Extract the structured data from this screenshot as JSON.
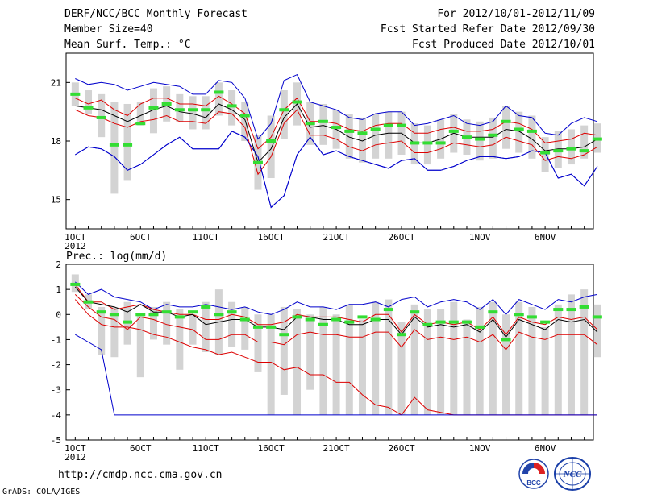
{
  "header": {
    "left": [
      "DERF/NCC/BCC Monthly Forecast",
      "Member Size=40",
      "Mean Surf. Temp.: °C"
    ],
    "right": [
      "For 2012/10/01-2012/11/09",
      "Fcst Started Refer Date 2012/09/30",
      "Fcst Produced Date 2012/10/01"
    ]
  },
  "footer": {
    "url": "http://cmdp.ncc.cma.gov.cn",
    "credit": "GrADS: COLA/IGES"
  },
  "logos": {
    "bcc_label": "BCC",
    "ncc_label": "NCC"
  },
  "colors": {
    "envelope": "#0000cc",
    "spread": "#dd0000",
    "mean": "#000000",
    "box": "#d3d3d3",
    "marker": "#33dd33"
  },
  "chart_data": [
    {
      "type": "line",
      "title": "Mean Surf. Temp.: °C",
      "xlabel": "",
      "ylabel": "",
      "xlim": [
        0.3,
        40.7
      ],
      "ylim": [
        13.5,
        22.5
      ],
      "yticks": [
        15,
        18,
        21
      ],
      "xticks": [
        {
          "day": 1,
          "label": "1OCT",
          "sub": "2012"
        },
        {
          "day": 6,
          "label": "6OCT"
        },
        {
          "day": 11,
          "label": "11OCT"
        },
        {
          "day": 16,
          "label": "16OCT"
        },
        {
          "day": 21,
          "label": "21OCT"
        },
        {
          "day": 26,
          "label": "26OCT"
        },
        {
          "day": 32,
          "label": "1NOV"
        },
        {
          "day": 37,
          "label": "6NOV"
        }
      ],
      "series": [
        {
          "name": "max",
          "color": "#0000cc",
          "values": [
            17.3,
            17.7,
            17.6,
            17.2,
            16.5,
            16.8,
            17.3,
            17.8,
            18.2,
            17.6,
            17.6,
            17.6,
            18.5,
            18.2,
            17.2,
            14.6,
            15.2,
            17.3,
            18.2,
            17.3,
            17.5,
            17.2,
            17.0,
            16.8,
            16.6,
            17.0,
            17.1,
            16.5,
            16.5,
            16.7,
            17.0,
            17.2,
            17.2,
            17.1,
            17.2,
            17.5,
            17.4,
            16.1,
            16.3,
            15.7,
            16.7
          ]
        },
        {
          "name": "max_upper",
          "color": "#0000cc",
          "values": [
            21.2,
            20.9,
            21.0,
            20.9,
            20.6,
            20.8,
            21.0,
            20.9,
            20.8,
            20.4,
            20.4,
            21.1,
            21.0,
            20.2,
            18.1,
            18.9,
            21.1,
            21.4,
            20.0,
            19.8,
            19.6,
            19.2,
            19.1,
            19.4,
            19.5,
            19.5,
            18.8,
            18.9,
            19.1,
            19.3,
            18.9,
            18.8,
            19.0,
            19.8,
            19.3,
            19.2,
            18.4,
            18.3,
            18.9,
            19.2,
            19.0
          ]
        },
        {
          "name": "spread_upper",
          "color": "#dd0000",
          "values": [
            20.2,
            19.9,
            20.1,
            19.6,
            19.3,
            19.9,
            20.2,
            20.2,
            19.9,
            19.9,
            19.8,
            20.3,
            19.9,
            19.4,
            17.6,
            18.2,
            19.6,
            20.2,
            19.0,
            19.0,
            18.9,
            18.6,
            18.5,
            18.8,
            18.9,
            18.9,
            18.4,
            18.4,
            18.6,
            18.7,
            18.5,
            18.5,
            18.6,
            19.0,
            18.9,
            18.6,
            17.9,
            18.0,
            18.1,
            18.4,
            18.3
          ]
        },
        {
          "name": "ensemble_mean",
          "color": "#000000",
          "values": [
            19.8,
            19.7,
            19.6,
            19.3,
            19.0,
            19.3,
            19.6,
            19.8,
            19.5,
            19.4,
            19.2,
            19.9,
            19.6,
            19.1,
            16.9,
            17.6,
            19.2,
            19.9,
            18.7,
            18.8,
            18.6,
            18.2,
            18.0,
            18.3,
            18.4,
            18.4,
            17.9,
            17.9,
            18.1,
            18.4,
            18.2,
            18.2,
            18.2,
            18.6,
            18.5,
            18.1,
            17.5,
            17.6,
            17.6,
            17.7,
            18.1
          ]
        },
        {
          "name": "spread_lower",
          "color": "#dd0000",
          "values": [
            19.6,
            19.3,
            19.2,
            18.9,
            18.7,
            19.0,
            19.1,
            19.3,
            19.0,
            19.0,
            18.9,
            19.5,
            19.4,
            18.7,
            16.3,
            17.2,
            18.9,
            19.6,
            18.3,
            18.3,
            18.1,
            17.7,
            17.5,
            17.8,
            17.9,
            18.0,
            17.4,
            17.4,
            17.6,
            17.9,
            17.8,
            17.7,
            17.8,
            18.2,
            18.0,
            17.8,
            17.0,
            17.2,
            17.1,
            17.3,
            17.7
          ]
        },
        {
          "name": "min",
          "color": "#0000cc",
          "values": [
            17.3,
            17.7,
            17.6,
            17.2,
            16.5,
            16.8,
            17.3,
            17.8,
            18.2,
            17.6,
            17.6,
            17.6,
            18.5,
            18.2,
            17.2,
            14.6,
            15.2,
            17.3,
            18.2,
            17.3,
            17.5,
            17.2,
            17.0,
            16.8,
            16.6,
            17.0,
            17.1,
            16.5,
            16.5,
            16.7,
            17.0,
            17.2,
            17.2,
            17.1,
            17.2,
            17.5,
            17.4,
            16.1,
            16.3,
            15.7,
            16.7
          ]
        }
      ],
      "boxes": [
        [
          19.8,
          21.0
        ],
        [
          19.4,
          20.6
        ],
        [
          18.2,
          20.4
        ],
        [
          15.3,
          20.0
        ],
        [
          16.0,
          19.9
        ],
        [
          18.8,
          20.0
        ],
        [
          18.4,
          20.7
        ],
        [
          19.0,
          20.8
        ],
        [
          19.0,
          20.4
        ],
        [
          18.6,
          20.3
        ],
        [
          18.6,
          20.3
        ],
        [
          19.3,
          21.0
        ],
        [
          18.8,
          20.6
        ],
        [
          18.0,
          20.0
        ],
        [
          15.5,
          18.3
        ],
        [
          16.1,
          19.3
        ],
        [
          18.1,
          20.6
        ],
        [
          18.8,
          21.0
        ],
        [
          17.8,
          20.0
        ],
        [
          17.8,
          19.9
        ],
        [
          17.6,
          19.6
        ],
        [
          17.1,
          19.4
        ],
        [
          16.9,
          19.2
        ],
        [
          17.1,
          19.4
        ],
        [
          17.1,
          19.5
        ],
        [
          17.3,
          19.5
        ],
        [
          16.8,
          18.9
        ],
        [
          16.8,
          18.8
        ],
        [
          17.1,
          19.1
        ],
        [
          17.4,
          19.4
        ],
        [
          17.3,
          19.1
        ],
        [
          17.0,
          19.0
        ],
        [
          17.1,
          19.2
        ],
        [
          17.6,
          19.8
        ],
        [
          17.4,
          19.5
        ],
        [
          17.1,
          19.3
        ],
        [
          16.4,
          18.2
        ],
        [
          16.6,
          18.5
        ],
        [
          16.8,
          18.6
        ],
        [
          17.1,
          18.8
        ],
        [
          17.4,
          18.9
        ]
      ],
      "markers": [
        20.4,
        19.7,
        19.2,
        17.8,
        17.8,
        18.9,
        19.7,
        19.9,
        19.6,
        19.6,
        19.6,
        20.5,
        19.8,
        19.3,
        16.9,
        18.0,
        19.6,
        20.0,
        18.9,
        19.0,
        18.7,
        18.5,
        18.4,
        18.6,
        18.8,
        18.8,
        17.9,
        17.9,
        17.9,
        18.5,
        18.2,
        18.1,
        18.3,
        19.0,
        18.6,
        18.5,
        17.4,
        17.5,
        17.6,
        17.5,
        18.1
      ]
    },
    {
      "type": "line",
      "title": "Prec.: log(mm/d)",
      "xlabel": "",
      "ylabel": "",
      "xlim": [
        0.3,
        40.7
      ],
      "ylim": [
        -5,
        2
      ],
      "yticks": [
        -5,
        -4,
        -3,
        -2,
        -1,
        0,
        1,
        2
      ],
      "xticks": [
        {
          "day": 1,
          "label": "1OCT",
          "sub": "2012"
        },
        {
          "day": 6,
          "label": "6OCT"
        },
        {
          "day": 11,
          "label": "11OCT"
        },
        {
          "day": 16,
          "label": "16OCT"
        },
        {
          "day": 21,
          "label": "21OCT"
        },
        {
          "day": 26,
          "label": "26OCT"
        },
        {
          "day": 32,
          "label": "1NOV"
        },
        {
          "day": 37,
          "label": "6NOV"
        }
      ],
      "series": [
        {
          "name": "max",
          "color": "#0000cc",
          "values": [
            1.3,
            0.8,
            1.0,
            0.7,
            0.6,
            0.5,
            0.2,
            0.4,
            0.3,
            0.3,
            0.4,
            0.3,
            0.2,
            0.3,
            0.1,
            0.0,
            0.2,
            0.5,
            0.3,
            0.3,
            0.2,
            0.4,
            0.4,
            0.5,
            0.3,
            0.6,
            0.7,
            0.3,
            0.5,
            0.6,
            0.5,
            0.2,
            0.6,
            0.0,
            0.6,
            0.4,
            0.2,
            0.6,
            0.5,
            0.7,
            0.8
          ]
        },
        {
          "name": "spread_upper",
          "color": "#dd0000",
          "values": [
            1.2,
            0.5,
            0.5,
            0.2,
            0.3,
            0.4,
            0.2,
            0.1,
            0.0,
            0.0,
            -0.2,
            -0.2,
            0.0,
            -0.1,
            -0.4,
            -0.4,
            -0.3,
            0.0,
            -0.1,
            -0.1,
            -0.1,
            -0.2,
            -0.3,
            0.0,
            0.0,
            -0.7,
            0.0,
            -0.4,
            -0.3,
            -0.4,
            -0.3,
            -0.6,
            -0.1,
            -0.8,
            -0.1,
            -0.3,
            -0.4,
            -0.1,
            -0.2,
            -0.1,
            -0.6
          ]
        },
        {
          "name": "ensemble_mean",
          "color": "#000000",
          "values": [
            1.1,
            0.5,
            0.4,
            0.3,
            0.1,
            0.4,
            0.1,
            0.1,
            -0.1,
            0.0,
            -0.4,
            -0.3,
            -0.2,
            -0.2,
            -0.5,
            -0.5,
            -0.6,
            -0.1,
            -0.1,
            -0.2,
            -0.2,
            -0.4,
            -0.4,
            -0.2,
            -0.2,
            -0.8,
            -0.1,
            -0.5,
            -0.4,
            -0.5,
            -0.4,
            -0.7,
            -0.2,
            -0.9,
            -0.2,
            -0.4,
            -0.6,
            -0.2,
            -0.3,
            -0.2,
            -0.7
          ]
        },
        {
          "name": "spread_lower",
          "color": "#dd0000",
          "values": [
            0.8,
            0.3,
            -0.1,
            -0.2,
            -0.6,
            -0.1,
            -0.2,
            -0.4,
            -0.5,
            -0.6,
            -1.0,
            -1.0,
            -0.8,
            -0.8,
            -1.1,
            -1.1,
            -1.2,
            -0.8,
            -0.7,
            -0.8,
            -0.8,
            -0.9,
            -0.9,
            -0.7,
            -0.7,
            -1.3,
            -0.6,
            -1.0,
            -0.9,
            -1.0,
            -0.9,
            -1.1,
            -0.8,
            -1.4,
            -0.7,
            -0.9,
            -1.0,
            -0.8,
            -0.8,
            -0.8,
            -1.2
          ]
        },
        {
          "name": "spread_lower2",
          "color": "#dd0000",
          "values": [
            0.6,
            0.0,
            -0.4,
            -0.5,
            -0.5,
            -0.6,
            -0.8,
            -0.9,
            -1.1,
            -1.3,
            -1.4,
            -1.6,
            -1.5,
            -1.7,
            -1.9,
            -1.9,
            -2.2,
            -2.1,
            -2.4,
            -2.4,
            -2.7,
            -2.7,
            -3.2,
            -3.6,
            -3.7,
            -4.0,
            -3.3,
            -3.8,
            -3.9,
            -4.0,
            -4.0,
            -4.0,
            -4.0,
            -4.0,
            -4.0,
            -4.0,
            -4.0,
            -4.0,
            -4.0,
            -4.0,
            -4.0
          ]
        },
        {
          "name": "min",
          "color": "#0000cc",
          "values": [
            -0.8,
            -1.1,
            -1.4,
            -4.0,
            -4.0,
            -4.0,
            -4.0,
            -4.0,
            -4.0,
            -4.0,
            -4.0,
            -4.0,
            -4.0,
            -4.0,
            -4.0,
            -4.0,
            -4.0,
            -4.0,
            -4.0,
            -4.0,
            -4.0,
            -4.0,
            -4.0,
            -4.0,
            -4.0,
            -4.0,
            -4.0,
            -4.0,
            -4.0,
            -4.0,
            -4.0,
            -4.0,
            -4.0,
            -4.0,
            -4.0,
            -4.0,
            -4.0,
            -4.0,
            -4.0,
            -4.0,
            -4.0
          ]
        }
      ],
      "boxes": [
        [
          0.9,
          1.6
        ],
        [
          0.2,
          0.8
        ],
        [
          -1.6,
          0.3
        ],
        [
          -1.7,
          0.3
        ],
        [
          -1.2,
          0.5
        ],
        [
          -2.5,
          0.0
        ],
        [
          -1.0,
          0.3
        ],
        [
          -1.2,
          0.5
        ],
        [
          -2.2,
          0.2
        ],
        [
          -1.2,
          0.0
        ],
        [
          -1.5,
          0.5
        ],
        [
          -1.6,
          1.0
        ],
        [
          -1.3,
          0.5
        ],
        [
          -1.4,
          0.3
        ],
        [
          -2.3,
          0.0
        ],
        [
          -4.0,
          0.0
        ],
        [
          -3.2,
          0.3
        ],
        [
          -4.0,
          0.2
        ],
        [
          -3.0,
          0.0
        ],
        [
          -4.0,
          0.3
        ],
        [
          -4.0,
          0.0
        ],
        [
          -4.0,
          0.4
        ],
        [
          -4.0,
          -0.2
        ],
        [
          -4.0,
          0.5
        ],
        [
          -4.0,
          0.6
        ],
        [
          -4.0,
          -0.3
        ],
        [
          -4.0,
          0.4
        ],
        [
          -4.0,
          0.2
        ],
        [
          -4.0,
          0.2
        ],
        [
          -4.0,
          0.5
        ],
        [
          -4.0,
          -0.2
        ],
        [
          -4.0,
          0.3
        ],
        [
          -4.0,
          0.5
        ],
        [
          -4.0,
          0.0
        ],
        [
          -4.0,
          0.5
        ],
        [
          -4.0,
          0.3
        ],
        [
          -4.0,
          -0.5
        ],
        [
          -4.0,
          0.4
        ],
        [
          -4.0,
          0.8
        ],
        [
          -4.0,
          1.0
        ],
        [
          -1.7,
          0.4
        ]
      ],
      "markers": [
        1.2,
        0.5,
        0.1,
        0.0,
        -0.3,
        0.0,
        0.0,
        0.1,
        -0.1,
        0.1,
        0.3,
        0.0,
        0.1,
        -0.2,
        -0.5,
        -0.5,
        -0.8,
        -0.1,
        -0.2,
        -0.4,
        -0.2,
        -0.3,
        -0.1,
        -0.2,
        0.2,
        -0.8,
        0.1,
        -0.4,
        -0.3,
        -0.3,
        -0.3,
        -0.5,
        0.1,
        -1.0,
        0.0,
        -0.1,
        -0.3,
        0.2,
        0.2,
        0.3,
        -0.1
      ]
    }
  ]
}
